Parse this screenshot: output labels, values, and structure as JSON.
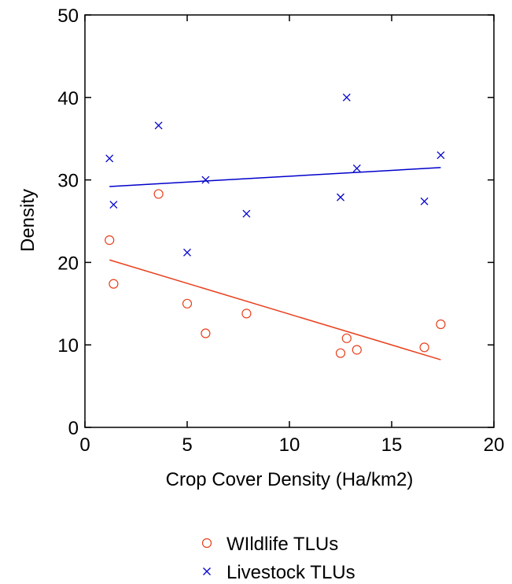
{
  "chart_data": {
    "type": "scatter",
    "title": "",
    "xlabel": "Crop Cover Density (Ha/km2)",
    "ylabel": "Density",
    "xlim": [
      0,
      20
    ],
    "ylim": [
      0,
      50
    ],
    "xticks": [
      "0",
      "5",
      "10",
      "15",
      "20"
    ],
    "yticks": [
      "0",
      "10",
      "20",
      "30",
      "40",
      "50"
    ],
    "grid": false,
    "legend_position": "bottom",
    "series": [
      {
        "name": "WIldlife TLUs",
        "marker": "circle",
        "color": "#e8401c",
        "points": [
          [
            1.2,
            22.7
          ],
          [
            1.4,
            17.4
          ],
          [
            3.6,
            28.3
          ],
          [
            5.0,
            15.0
          ],
          [
            5.9,
            11.4
          ],
          [
            7.9,
            13.8
          ],
          [
            12.5,
            9.0
          ],
          [
            12.8,
            10.8
          ],
          [
            13.3,
            9.4
          ],
          [
            16.6,
            9.7
          ],
          [
            17.4,
            12.5
          ]
        ],
        "trend": [
          [
            1.2,
            20.3
          ],
          [
            17.4,
            8.2
          ]
        ]
      },
      {
        "name": "Livestock TLUs",
        "marker": "x",
        "color": "#0000cc",
        "points": [
          [
            1.2,
            32.6
          ],
          [
            1.4,
            27.0
          ],
          [
            3.6,
            36.6
          ],
          [
            5.0,
            21.2
          ],
          [
            5.9,
            30.0
          ],
          [
            7.9,
            25.9
          ],
          [
            12.5,
            27.9
          ],
          [
            12.8,
            40.0
          ],
          [
            13.3,
            31.4
          ],
          [
            16.6,
            27.4
          ],
          [
            17.4,
            33.0
          ]
        ],
        "trend": [
          [
            1.2,
            29.2
          ],
          [
            17.4,
            31.5
          ]
        ]
      }
    ]
  }
}
